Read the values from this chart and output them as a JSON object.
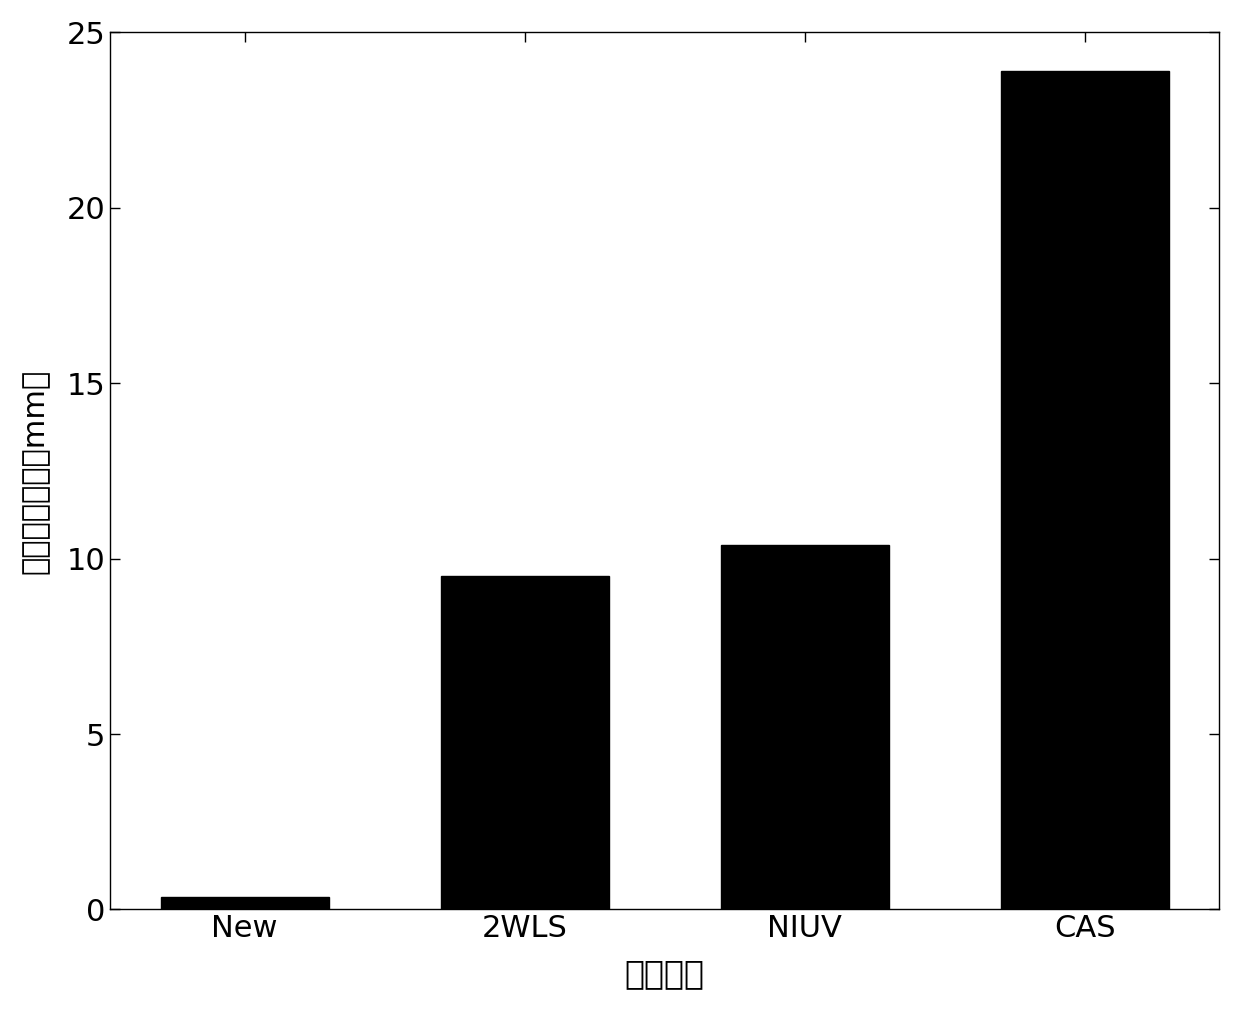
{
  "categories": [
    "New",
    "2WLS",
    "NIUV",
    "CAS"
  ],
  "values": [
    0.35,
    9.5,
    10.4,
    23.9
  ],
  "bar_color": "#000000",
  "bar_width": 0.6,
  "xlabel": "定位方法",
  "ylabel": "绝对距离误差（mm）",
  "ylim": [
    0,
    25
  ],
  "yticks": [
    0,
    5,
    10,
    15,
    20,
    25
  ],
  "xlabel_fontsize": 24,
  "ylabel_fontsize": 22,
  "tick_fontsize": 22,
  "xtick_fontsize": 22,
  "background_color": "#ffffff"
}
